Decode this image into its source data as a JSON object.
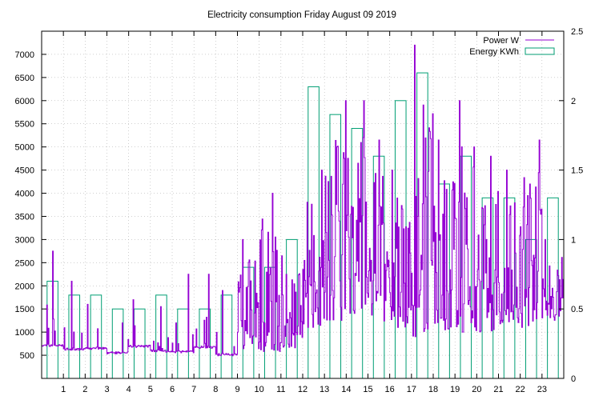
{
  "chart_data": {
    "type": "bar",
    "title": "Electricity consumption Friday August 09 2019",
    "xlabel": "",
    "ylabel": "",
    "y2label": "",
    "grid": true,
    "legend_position": "top-right",
    "xlim": [
      0,
      24
    ],
    "ylim": [
      0,
      7500
    ],
    "y2lim": [
      0,
      2.5
    ],
    "x_ticks": [
      "1",
      "2",
      "3",
      "4",
      "5",
      "6",
      "7",
      "8",
      "9",
      "10",
      "11",
      "12",
      "13",
      "14",
      "15",
      "16",
      "17",
      "18",
      "19",
      "20",
      "21",
      "22",
      "23"
    ],
    "y_ticks": [
      "500",
      "1000",
      "1500",
      "2000",
      "2500",
      "3000",
      "3500",
      "4000",
      "4500",
      "5000",
      "5500",
      "6000",
      "6500",
      "7000"
    ],
    "y2_ticks": [
      "0",
      "0.5",
      "1",
      "1.5",
      "2",
      "2.5"
    ],
    "colors": {
      "power": "#9400d3",
      "energy": "#009e73",
      "grid": "#a0a0a0"
    },
    "series": [
      {
        "name": "Power W",
        "type": "line",
        "axis": "left",
        "hourly_baseline": [
          680,
          600,
          620,
          520,
          660,
          560,
          540,
          640,
          480,
          640,
          580,
          660,
          1100,
          1250,
          1400,
          1150,
          1100,
          900,
          1050,
          1000,
          1000,
          1150,
          1100,
          1250
        ],
        "hourly_peak": [
          2750,
          2100,
          1600,
          1200,
          1700,
          1550,
          2250,
          2250,
          1900,
          3000,
          4000,
          2650,
          4500,
          6000,
          6000,
          5150,
          4500,
          7200,
          5150,
          6000,
          4800,
          4500,
          5150,
          3000
        ]
      },
      {
        "name": "Energy KWh",
        "type": "bar",
        "axis": "right",
        "x": [
          0,
          1,
          2,
          3,
          4,
          5,
          6,
          7,
          8,
          9,
          10,
          11,
          12,
          13,
          14,
          15,
          16,
          17,
          18,
          19,
          20,
          21,
          22,
          23
        ],
        "values": [
          0.7,
          0.6,
          0.6,
          0.5,
          0.5,
          0.6,
          0.5,
          0.5,
          0.6,
          0.8,
          0.8,
          1.0,
          2.1,
          1.9,
          1.8,
          1.6,
          2.0,
          2.2,
          1.4,
          1.6,
          1.3,
          1.3,
          1.0,
          1.3
        ]
      }
    ]
  }
}
